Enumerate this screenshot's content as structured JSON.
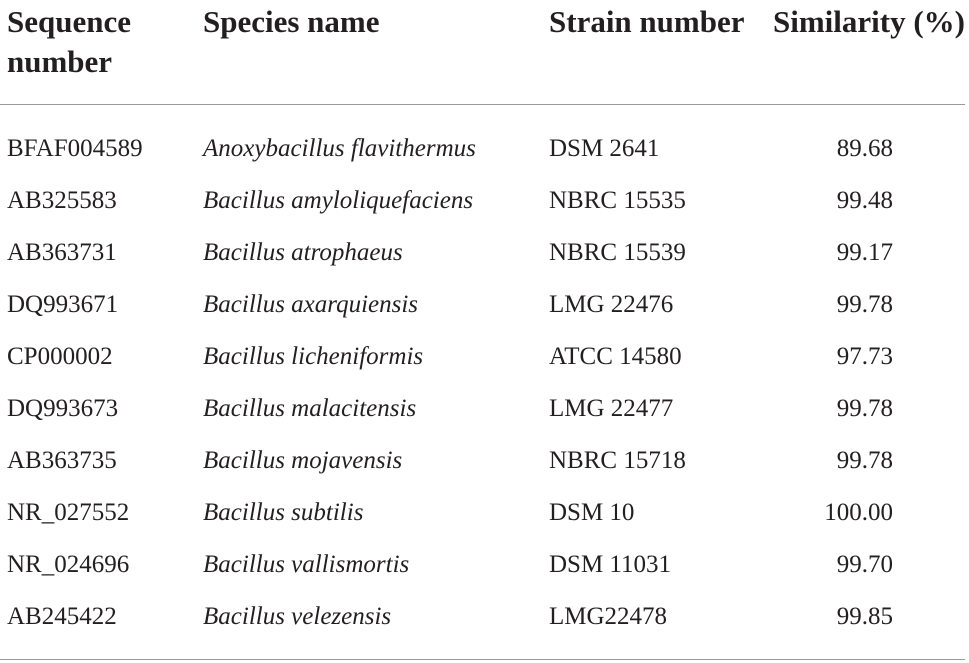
{
  "table": {
    "header": [
      "Sequence number",
      "Species name",
      "Strain number",
      "Similarity (%)"
    ],
    "rows": [
      [
        "BFAF004589",
        "Anoxybacillus flavithermus",
        "DSM 2641",
        "89.68"
      ],
      [
        "AB325583",
        "Bacillus amyloliquefaciens",
        "NBRC 15535",
        "99.48"
      ],
      [
        "AB363731",
        "Bacillus atrophaeus",
        "NBRC 15539",
        "99.17"
      ],
      [
        "DQ993671",
        "Bacillus axarquiensis",
        "LMG 22476",
        "99.78"
      ],
      [
        "CP000002",
        "Bacillus licheniformis",
        "ATCC 14580",
        "97.73"
      ],
      [
        "DQ993673",
        "Bacillus malacitensis",
        "LMG 22477",
        "99.78"
      ],
      [
        "AB363735",
        "Bacillus mojavensis",
        "NBRC 15718",
        "99.78"
      ],
      [
        "NR_027552",
        "Bacillus subtilis",
        "DSM 10",
        "100.00"
      ],
      [
        "NR_024696",
        "Bacillus vallismortis",
        "DSM 11031",
        "99.70"
      ],
      [
        "AB245422",
        "Bacillus velezensis",
        "LMG22478",
        "99.85"
      ]
    ]
  }
}
